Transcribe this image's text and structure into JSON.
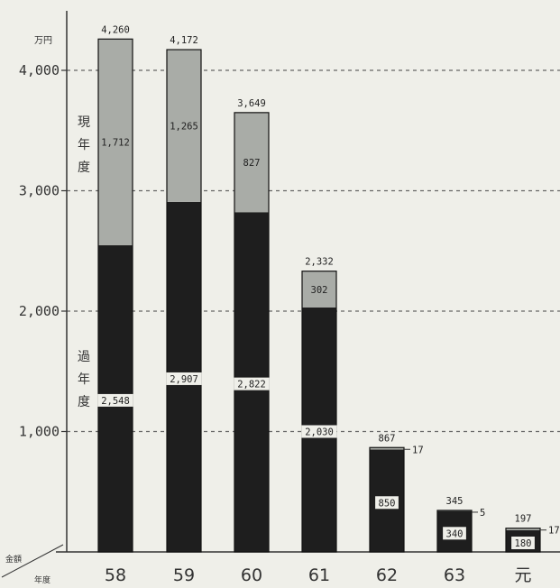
{
  "chart_data": {
    "type": "bar",
    "stacked": true,
    "unit_label": "万円",
    "corner_top": "金額",
    "corner_bottom": "年度",
    "categories": [
      "58",
      "59",
      "60",
      "61",
      "62",
      "63",
      "元"
    ],
    "series": [
      {
        "name": "過年度",
        "values": [
          2548,
          2907,
          2822,
          2030,
          850,
          340,
          180
        ]
      },
      {
        "name": "現年度",
        "values": [
          1712,
          1265,
          827,
          302,
          17,
          5,
          17
        ]
      }
    ],
    "totals": [
      4260,
      4172,
      3649,
      2332,
      867,
      345,
      197
    ],
    "data_labels": {
      "past": [
        "2,548",
        "2,907",
        "2,822",
        "2,030",
        "850",
        "340",
        "180"
      ],
      "current": [
        "1,712",
        "1,265",
        "827",
        "302",
        "17",
        "5",
        "17"
      ],
      "totals": [
        "4,260",
        "4,172",
        "3,649",
        "2,332",
        "867",
        "345",
        "197"
      ]
    },
    "y_ticks": [
      1000,
      2000,
      3000,
      4000
    ],
    "y_tick_labels": [
      "1,000",
      "2,000",
      "3,000",
      "4,000"
    ],
    "ylim": [
      0,
      4600
    ],
    "gridlines": "dashed",
    "colors": {
      "past": "#1e1e1e",
      "current": "#a9aca7",
      "background": "#efefe9"
    }
  }
}
